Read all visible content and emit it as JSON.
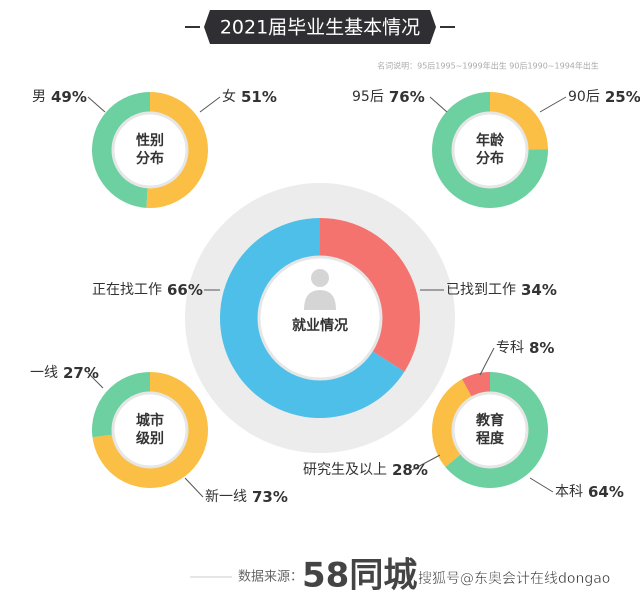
{
  "title": "2021届毕业生基本情况",
  "note": "名词说明：95后1995~1999年出生  90后1990~1994年出生",
  "source_label": "数据来源：",
  "source": "58同城",
  "watermark": "搜狐号@东奥会计在线dongao",
  "chart_data": [
    {
      "type": "pie",
      "center_label": [
        "性别",
        "分布"
      ],
      "categories": [
        "女",
        "男"
      ],
      "values": [
        51,
        49
      ],
      "value_labels": [
        "51%",
        "49%"
      ],
      "colors": [
        "#fbbf45",
        "#6dd0a0"
      ]
    },
    {
      "type": "pie",
      "center_label": [
        "年龄",
        "分布"
      ],
      "categories": [
        "90后",
        "95后"
      ],
      "values": [
        25,
        76
      ],
      "value_labels": [
        "25%",
        "76%"
      ],
      "colors": [
        "#fbbf45",
        "#6dd0a0"
      ]
    },
    {
      "type": "pie",
      "center_label": [
        "就业情况"
      ],
      "categories": [
        "已找到工作",
        "正在找工作"
      ],
      "values": [
        34,
        66
      ],
      "value_labels": [
        "34%",
        "66%"
      ],
      "colors": [
        "#f4736f",
        "#4dbfe8"
      ]
    },
    {
      "type": "pie",
      "center_label": [
        "城市",
        "级别"
      ],
      "categories": [
        "新一线",
        "一线"
      ],
      "values": [
        73,
        27
      ],
      "value_labels": [
        "73%",
        "27%"
      ],
      "colors": [
        "#fbbf45",
        "#6dd0a0"
      ]
    },
    {
      "type": "pie",
      "center_label": [
        "教育",
        "程度"
      ],
      "categories": [
        "本科",
        "研究生及以上",
        "专科"
      ],
      "values": [
        64,
        28,
        8
      ],
      "value_labels": [
        "64%",
        "28%",
        "8%"
      ],
      "colors": [
        "#6dd0a0",
        "#fbbf45",
        "#f4736f"
      ]
    }
  ]
}
